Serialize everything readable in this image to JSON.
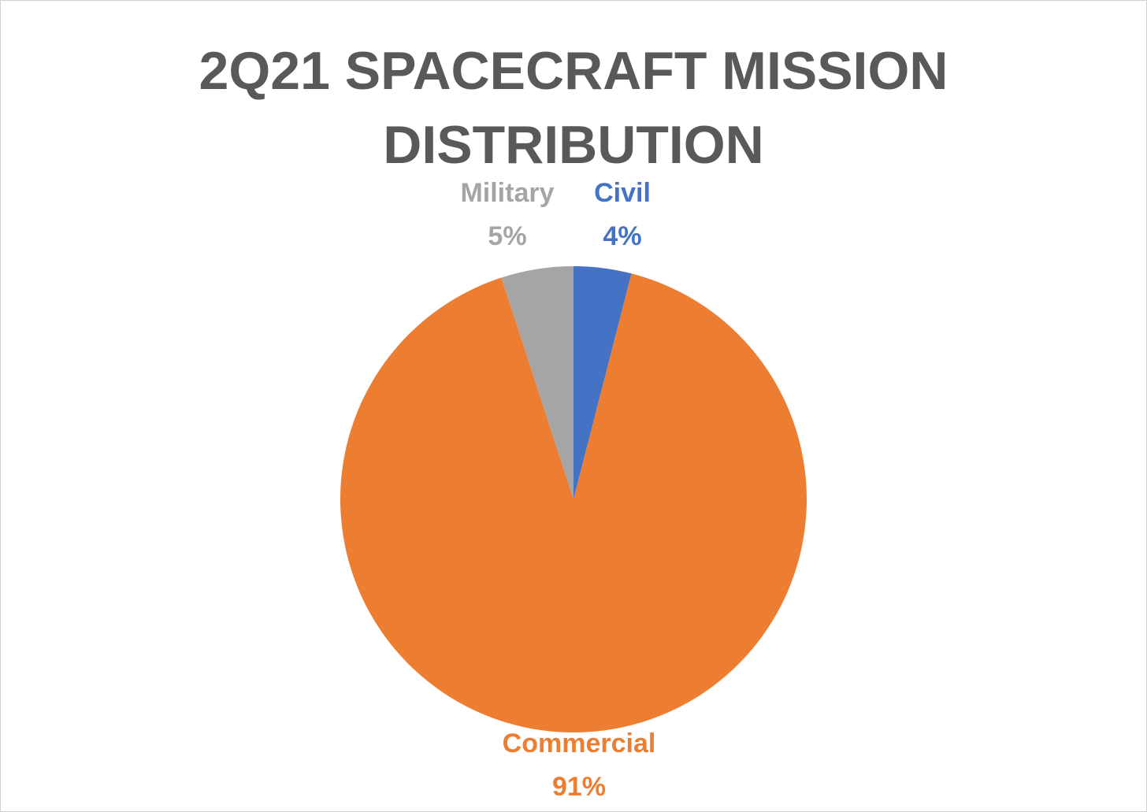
{
  "chart_data": {
    "type": "pie",
    "title_lines": [
      "2Q21 SPACECRAFT MISSION",
      "DISTRIBUTION"
    ],
    "slices": [
      {
        "name": "Civil",
        "value": 4,
        "label": "4%",
        "color": "#4472c4"
      },
      {
        "name": "Commercial",
        "value": 91,
        "label": "91%",
        "color": "#ed7d31"
      },
      {
        "name": "Military",
        "value": 5,
        "label": "5%",
        "color": "#a5a5a5"
      }
    ],
    "legend": "none"
  }
}
